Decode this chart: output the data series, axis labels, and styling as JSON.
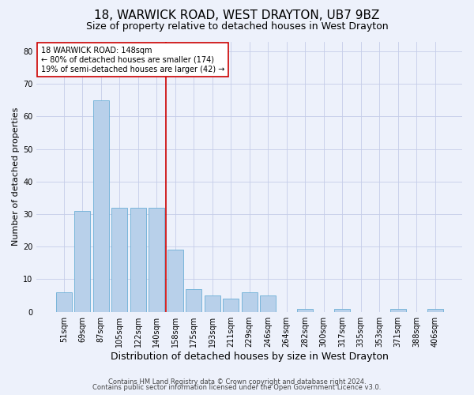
{
  "title": "18, WARWICK ROAD, WEST DRAYTON, UB7 9BZ",
  "subtitle": "Size of property relative to detached houses in West Drayton",
  "xlabel": "Distribution of detached houses by size in West Drayton",
  "ylabel": "Number of detached properties",
  "footer1": "Contains HM Land Registry data © Crown copyright and database right 2024.",
  "footer2": "Contains public sector information licensed under the Open Government Licence v3.0.",
  "categories": [
    "51sqm",
    "69sqm",
    "87sqm",
    "105sqm",
    "122sqm",
    "140sqm",
    "158sqm",
    "175sqm",
    "193sqm",
    "211sqm",
    "229sqm",
    "246sqm",
    "264sqm",
    "282sqm",
    "300sqm",
    "317sqm",
    "335sqm",
    "353sqm",
    "371sqm",
    "388sqm",
    "406sqm"
  ],
  "values": [
    6,
    31,
    65,
    32,
    32,
    32,
    19,
    7,
    5,
    4,
    6,
    5,
    0,
    1,
    0,
    1,
    0,
    0,
    1,
    0,
    1
  ],
  "bar_color": "#b8d0ea",
  "bar_edge_color": "#6aaed6",
  "marker_bin_index": 5,
  "marker_color": "#cc0000",
  "annotation_line1": "18 WARWICK ROAD: 148sqm",
  "annotation_line2": "← 80% of detached houses are smaller (174)",
  "annotation_line3": "19% of semi-detached houses are larger (42) →",
  "annotation_box_color": "#ffffff",
  "annotation_box_edge": "#cc0000",
  "ylim": [
    0,
    83
  ],
  "yticks": [
    0,
    10,
    20,
    30,
    40,
    50,
    60,
    70,
    80
  ],
  "background_color": "#edf1fb",
  "plot_background": "#edf1fb",
  "grid_color": "#c5cde8",
  "title_fontsize": 11,
  "subtitle_fontsize": 9,
  "xlabel_fontsize": 9,
  "ylabel_fontsize": 8,
  "tick_fontsize": 7,
  "annotation_fontsize": 7,
  "footer_fontsize": 6
}
